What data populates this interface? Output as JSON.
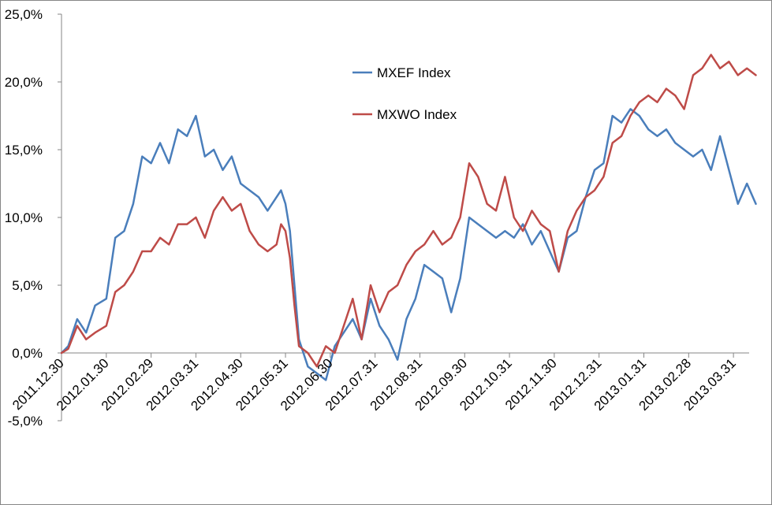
{
  "chart_data": {
    "type": "line",
    "title": "",
    "xlabel": "",
    "ylabel": "",
    "ylim": [
      -5,
      25
    ],
    "y_ticks": [
      -5,
      0,
      5,
      10,
      15,
      20,
      25
    ],
    "y_tick_labels": [
      "-5,0%",
      "0,0%",
      "5,0%",
      "10,0%",
      "15,0%",
      "20,0%",
      "25,0%"
    ],
    "x_tick_labels": [
      "2011.12.30",
      "2012.01.30",
      "2012.02.29",
      "2012.03.31",
      "2012.04.30",
      "2012.05.31",
      "2012.06.30",
      "2012.07.31",
      "2012.08.31",
      "2012.09.30",
      "2012.10.31",
      "2012.11.30",
      "2012.12.31",
      "2013.01.31",
      "2013.02.28",
      "2013.03.31"
    ],
    "grid": false,
    "legend_position": "top-center",
    "series": [
      {
        "name": "MXEF Index",
        "color": "#4A7EBB",
        "x": [
          0,
          0.15,
          0.35,
          0.55,
          0.75,
          1,
          1.2,
          1.4,
          1.6,
          1.8,
          2,
          2.2,
          2.4,
          2.6,
          2.8,
          3,
          3.2,
          3.4,
          3.6,
          3.8,
          4,
          4.2,
          4.4,
          4.6,
          4.8,
          4.9,
          5,
          5.1,
          5.2,
          5.3,
          5.5,
          5.7,
          5.9,
          6.1,
          6.3,
          6.5,
          6.7,
          6.9,
          7.1,
          7.3,
          7.5,
          7.7,
          7.9,
          8.1,
          8.3,
          8.5,
          8.7,
          8.9,
          9.1,
          9.3,
          9.5,
          9.7,
          9.9,
          10.1,
          10.3,
          10.5,
          10.7,
          10.9,
          11.1,
          11.3,
          11.5,
          11.7,
          11.9,
          12.1,
          12.3,
          12.5,
          12.7,
          12.9,
          13.1,
          13.3,
          13.5,
          13.7,
          13.9,
          14.1,
          14.3,
          14.5,
          14.7,
          14.9,
          15.1,
          15.3,
          15.5
        ],
        "values": [
          0.0,
          0.5,
          2.5,
          1.5,
          3.5,
          4.0,
          8.5,
          9.0,
          11.0,
          14.5,
          14.0,
          15.5,
          14.0,
          16.5,
          16.0,
          17.5,
          14.5,
          15.0,
          13.5,
          14.5,
          12.5,
          12.0,
          11.5,
          10.5,
          11.5,
          12.0,
          11.0,
          9.0,
          5.0,
          1.0,
          -1.0,
          -1.5,
          -2.0,
          0.5,
          1.5,
          2.5,
          1.0,
          4.0,
          2.0,
          1.0,
          -0.5,
          2.5,
          4.0,
          6.5,
          6.0,
          5.5,
          3.0,
          5.5,
          10.0,
          9.5,
          9.0,
          8.5,
          9.0,
          8.5,
          9.5,
          8.0,
          9.0,
          7.5,
          6.0,
          8.5,
          9.0,
          11.5,
          13.5,
          14.0,
          17.5,
          17.0,
          18.0,
          17.5,
          16.5,
          16.0,
          16.5,
          15.5,
          15.0,
          14.5,
          15.0,
          13.5,
          16.0,
          13.5,
          11.0,
          12.5,
          11.0
        ]
      },
      {
        "name": "MXWO Index",
        "color": "#BE4B48",
        "x": [
          0,
          0.15,
          0.35,
          0.55,
          0.75,
          1,
          1.2,
          1.4,
          1.6,
          1.8,
          2,
          2.2,
          2.4,
          2.6,
          2.8,
          3,
          3.2,
          3.4,
          3.6,
          3.8,
          4,
          4.2,
          4.4,
          4.6,
          4.8,
          4.9,
          5,
          5.1,
          5.2,
          5.3,
          5.5,
          5.7,
          5.9,
          6.1,
          6.3,
          6.5,
          6.7,
          6.9,
          7.1,
          7.3,
          7.5,
          7.7,
          7.9,
          8.1,
          8.3,
          8.5,
          8.7,
          8.9,
          9.1,
          9.3,
          9.5,
          9.7,
          9.9,
          10.1,
          10.3,
          10.5,
          10.7,
          10.9,
          11.1,
          11.3,
          11.5,
          11.7,
          11.9,
          12.1,
          12.3,
          12.5,
          12.7,
          12.9,
          13.1,
          13.3,
          13.5,
          13.7,
          13.9,
          14.1,
          14.3,
          14.5,
          14.7,
          14.9,
          15.1,
          15.3,
          15.5
        ],
        "values": [
          0.0,
          0.3,
          2.0,
          1.0,
          1.5,
          2.0,
          4.5,
          5.0,
          6.0,
          7.5,
          7.5,
          8.5,
          8.0,
          9.5,
          9.5,
          10.0,
          8.5,
          10.5,
          11.5,
          10.5,
          11.0,
          9.0,
          8.0,
          7.5,
          8.0,
          9.5,
          9.0,
          7.0,
          3.5,
          0.5,
          0.0,
          -1.0,
          0.5,
          0.0,
          2.0,
          4.0,
          1.0,
          5.0,
          3.0,
          4.5,
          5.0,
          6.5,
          7.5,
          8.0,
          9.0,
          8.0,
          8.5,
          10.0,
          14.0,
          13.0,
          11.0,
          10.5,
          13.0,
          10.0,
          9.0,
          10.5,
          9.5,
          9.0,
          6.0,
          9.0,
          10.5,
          11.5,
          12.0,
          13.0,
          15.5,
          16.0,
          17.5,
          18.5,
          19.0,
          18.5,
          19.5,
          19.0,
          18.0,
          20.5,
          21.0,
          22.0,
          21.0,
          21.5,
          20.5,
          21.0,
          20.5
        ]
      }
    ]
  }
}
